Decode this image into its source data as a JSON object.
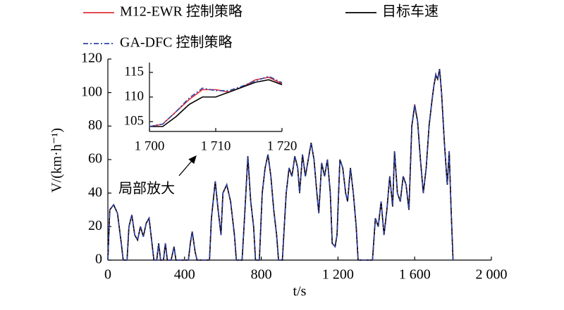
{
  "chart_data": [
    {
      "type": "line",
      "xlabel": "t/s",
      "ylabel": "V/(km·h⁻¹)",
      "annotation": "局部放大",
      "xlim": [
        0,
        2000
      ],
      "ylim": [
        0,
        120
      ],
      "xticks": [
        0,
        400,
        800,
        {
          "value": 1200,
          "label": "1 200"
        },
        {
          "value": 1600,
          "label": "1 600"
        },
        {
          "value": 2000,
          "label": "2 000"
        }
      ],
      "yticks": [
        0,
        20,
        40,
        60,
        80,
        100,
        120
      ],
      "grid": false,
      "x": [
        0,
        10,
        30,
        50,
        70,
        80,
        100,
        110,
        125,
        140,
        155,
        170,
        185,
        200,
        215,
        225,
        240,
        255,
        265,
        275,
        290,
        300,
        310,
        330,
        345,
        355,
        420,
        430,
        440,
        455,
        465,
        530,
        540,
        560,
        575,
        590,
        600,
        620,
        640,
        660,
        670,
        700,
        715,
        730,
        745,
        760,
        770,
        790,
        805,
        820,
        835,
        850,
        865,
        880,
        890,
        910,
        930,
        945,
        960,
        975,
        990,
        1000,
        1015,
        1030,
        1045,
        1060,
        1075,
        1090,
        1100,
        1115,
        1130,
        1145,
        1160,
        1170,
        1185,
        1195,
        1210,
        1225,
        1240,
        1250,
        1265,
        1280,
        1295,
        1305,
        1380,
        1395,
        1410,
        1425,
        1440,
        1455,
        1470,
        1485,
        1495,
        1510,
        1525,
        1540,
        1555,
        1570,
        1585,
        1600,
        1615,
        1630,
        1645,
        1660,
        1675,
        1690,
        1700,
        1710,
        1720,
        1730,
        1740,
        1755,
        1770,
        1780,
        1790,
        1800
      ],
      "series": [
        {
          "name": "M12-EWR 控制策略",
          "color": "#e0303a",
          "style": "solid",
          "values": [
            0,
            30,
            33,
            28,
            10,
            0,
            0,
            20,
            27,
            15,
            12,
            20,
            14,
            22,
            25,
            15,
            0,
            0,
            10,
            0,
            0,
            10,
            0,
            0,
            8,
            0,
            0,
            10,
            17,
            5,
            0,
            0,
            25,
            47,
            30,
            15,
            40,
            45,
            35,
            15,
            0,
            0,
            30,
            62,
            35,
            20,
            0,
            0,
            40,
            55,
            63,
            50,
            30,
            15,
            0,
            0,
            40,
            55,
            50,
            62,
            55,
            40,
            63,
            50,
            60,
            70,
            60,
            40,
            28,
            58,
            50,
            60,
            40,
            10,
            8,
            15,
            60,
            55,
            40,
            35,
            55,
            40,
            20,
            0,
            0,
            25,
            20,
            35,
            15,
            30,
            50,
            32,
            65,
            40,
            35,
            50,
            45,
            30,
            80,
            93,
            83,
            60,
            40,
            55,
            80,
            95,
            104,
            111,
            108,
            114,
            100,
            70,
            45,
            65,
            30,
            0
          ]
        },
        {
          "name": "目标车速",
          "color": "#000000",
          "style": "solid",
          "values": [
            0,
            30,
            33,
            28,
            10,
            0,
            0,
            20,
            27,
            15,
            12,
            20,
            14,
            22,
            25,
            15,
            0,
            0,
            10,
            0,
            0,
            10,
            0,
            0,
            8,
            0,
            0,
            10,
            17,
            5,
            0,
            0,
            25,
            47,
            30,
            15,
            40,
            45,
            35,
            15,
            0,
            0,
            30,
            62,
            35,
            20,
            0,
            0,
            40,
            55,
            63,
            50,
            30,
            15,
            0,
            0,
            40,
            55,
            50,
            62,
            55,
            40,
            63,
            50,
            60,
            70,
            60,
            40,
            28,
            58,
            50,
            60,
            40,
            10,
            8,
            15,
            60,
            55,
            40,
            35,
            55,
            40,
            20,
            0,
            0,
            25,
            20,
            35,
            15,
            30,
            50,
            32,
            65,
            40,
            35,
            50,
            45,
            30,
            80,
            92,
            83,
            60,
            40,
            55,
            80,
            95,
            104,
            110,
            108,
            114,
            100,
            70,
            45,
            65,
            30,
            0
          ]
        },
        {
          "name": "GA-DFC 控制策略",
          "color": "#2b45a8",
          "style": "dashdot",
          "values": [
            0,
            30,
            33,
            28,
            10,
            0,
            0,
            20,
            27,
            15,
            12,
            20,
            14,
            22,
            25,
            15,
            0,
            0,
            10,
            0,
            0,
            10,
            0,
            0,
            8,
            0,
            0,
            10,
            17,
            5,
            0,
            0,
            25,
            47,
            30,
            15,
            40,
            45,
            35,
            15,
            0,
            0,
            30,
            62,
            35,
            20,
            0,
            0,
            40,
            55,
            63,
            50,
            30,
            15,
            0,
            0,
            40,
            55,
            50,
            62,
            55,
            40,
            63,
            50,
            60,
            70,
            60,
            40,
            28,
            58,
            50,
            60,
            40,
            10,
            8,
            15,
            60,
            55,
            40,
            35,
            55,
            40,
            20,
            0,
            0,
            25,
            20,
            35,
            15,
            30,
            50,
            32,
            65,
            40,
            35,
            50,
            45,
            30,
            80,
            93,
            83,
            60,
            40,
            55,
            80,
            95,
            104,
            111,
            108,
            114,
            100,
            70,
            45,
            65,
            30,
            0
          ]
        }
      ]
    },
    {
      "type": "line",
      "xlim": [
        1700,
        1720
      ],
      "ylim": [
        103,
        117
      ],
      "xticks": [
        {
          "value": 1700,
          "label": "1 700"
        },
        {
          "value": 1710,
          "label": "1 710"
        },
        {
          "value": 1720,
          "label": "1 720"
        }
      ],
      "yticks": [
        105,
        110,
        115
      ],
      "grid": false,
      "x": [
        1700,
        1702,
        1704,
        1706,
        1708,
        1710,
        1712,
        1714,
        1716,
        1718,
        1720
      ],
      "series": [
        {
          "color": "#e0303a",
          "style": "solid",
          "values": [
            104,
            104.5,
            107,
            109.5,
            111.5,
            111.5,
            111,
            112,
            113.5,
            114,
            112.7
          ]
        },
        {
          "color": "#000000",
          "style": "solid",
          "values": [
            104,
            104,
            106,
            108.5,
            110,
            110,
            111,
            112,
            113,
            113.5,
            112.5
          ]
        },
        {
          "color": "#2b45a8",
          "style": "dashdot",
          "values": [
            104,
            104.5,
            107,
            109.8,
            111.8,
            111.3,
            111.3,
            112.2,
            113.3,
            114.2,
            112.9
          ]
        }
      ]
    }
  ]
}
